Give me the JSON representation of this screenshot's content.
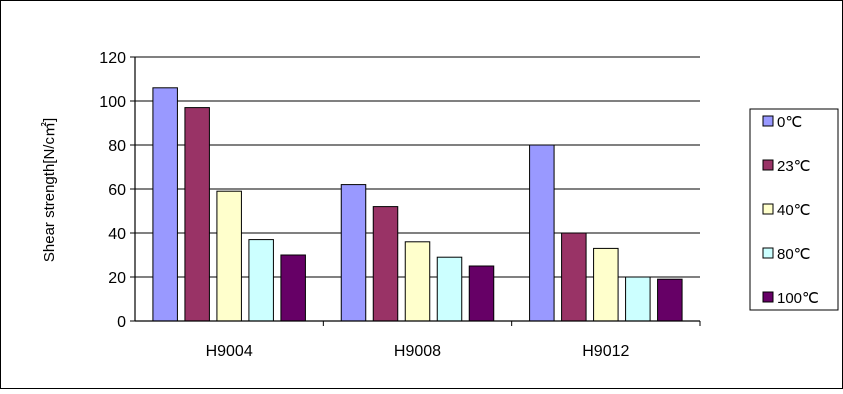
{
  "chart_data": {
    "type": "bar",
    "categories": [
      "H9004",
      "H9008",
      "H9012"
    ],
    "series": [
      {
        "name": "0℃",
        "values": [
          106,
          62,
          80
        ],
        "color": "#9999ff"
      },
      {
        "name": "23℃",
        "values": [
          97,
          52,
          40
        ],
        "color": "#993366"
      },
      {
        "name": "40℃",
        "values": [
          59,
          36,
          33
        ],
        "color": "#ffffcc"
      },
      {
        "name": "80℃",
        "values": [
          37,
          29,
          20
        ],
        "color": "#ccffff"
      },
      {
        "name": "100℃",
        "values": [
          30,
          25,
          19
        ],
        "color": "#660066"
      }
    ],
    "ylabel": "Shear strength[N/c㎡]",
    "ylim": [
      0,
      120
    ],
    "yticks": [
      0,
      20,
      40,
      60,
      80,
      100,
      120
    ],
    "grid": true,
    "legend_position": "right"
  }
}
